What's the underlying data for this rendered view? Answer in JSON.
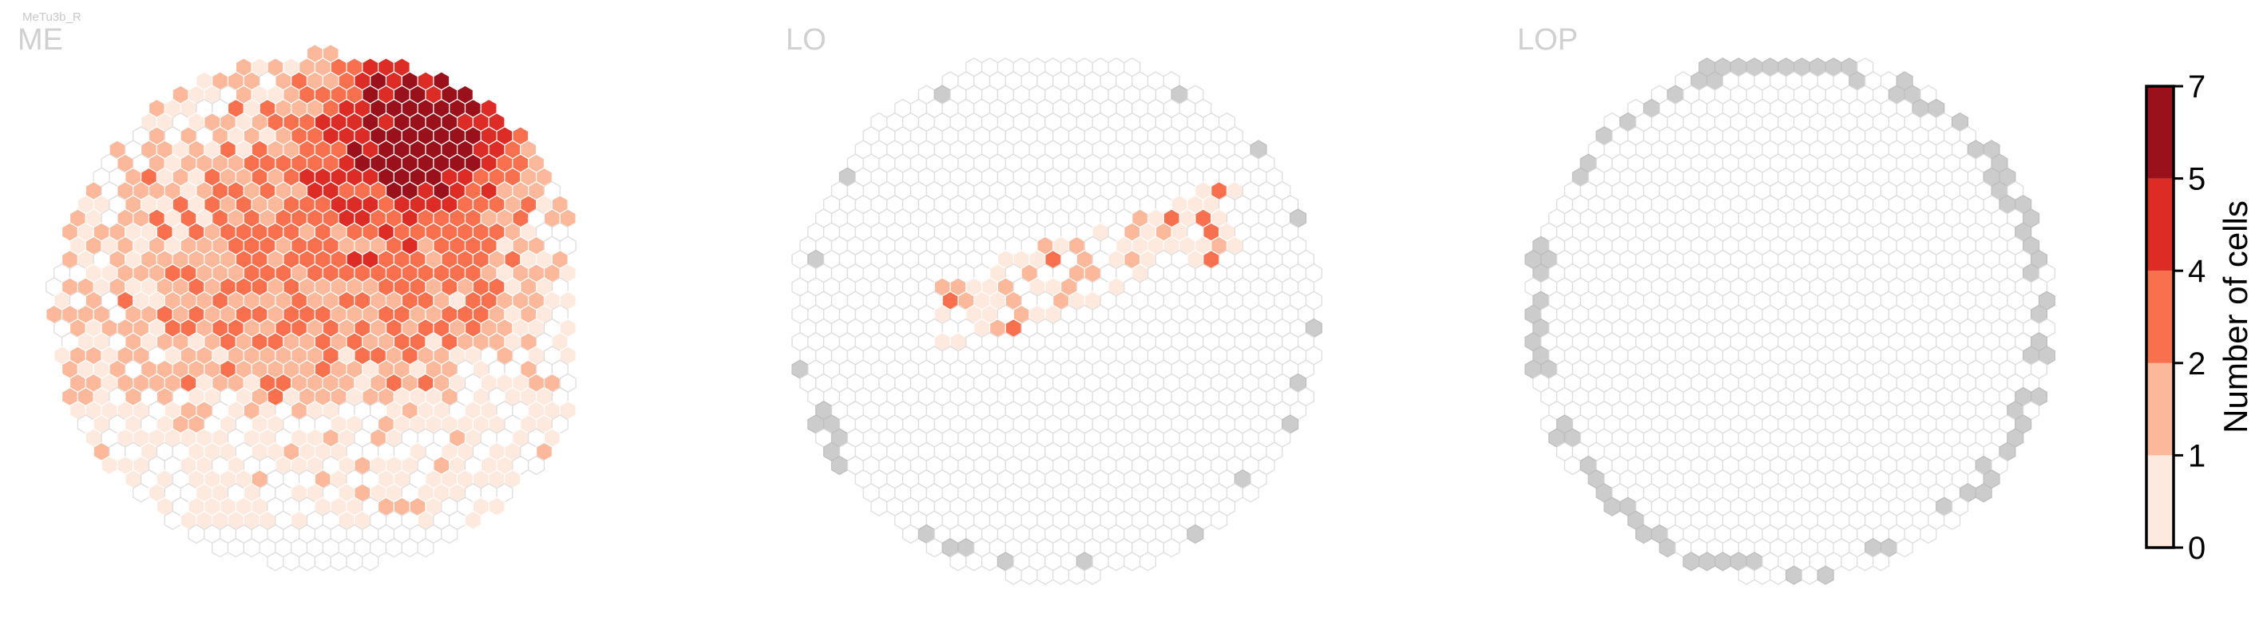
{
  "cell_type_label": "MeTu3b_R",
  "colorbar": {
    "label": "Number of cells",
    "ticks": [
      "0",
      "1",
      "2",
      "4",
      "5",
      "7"
    ],
    "colors": [
      "#fee9df",
      "#fcb89b",
      "#f9704f",
      "#dd2b25",
      "#9b111b"
    ],
    "edge_color": "#000000"
  },
  "colors": {
    "empty_fill": "#ffffff",
    "empty_stroke": "#dcdcdc",
    "edge_fill": "#cccccc",
    "title_text": "#c8c8c8"
  },
  "chart_data": [
    {
      "type": "heatmap",
      "title": "ME",
      "value_scale": "binned count of cells per column",
      "clim": [
        0,
        7
      ],
      "description_of_distribution": "Dense high counts in the dorsal-posterior (upper-right) region, values 4-7; moderate 1-4 across the upper half; sparse 0-1 in the lower half; empty at the bottom.",
      "peak_value": 7
    },
    {
      "type": "heatmap",
      "title": "LO",
      "value_scale": "binned count of cells per column",
      "clim": [
        0,
        7
      ],
      "description_of_distribution": "Mostly empty; a sparse horizontal band of 1-4 values across the middle; grey edge columns around the border.",
      "peak_value": 4
    },
    {
      "type": "heatmap",
      "title": "LOP",
      "value_scale": "binned count of cells per column",
      "clim": [
        0,
        7
      ],
      "description_of_distribution": "All columns empty; grey edge columns around the border.",
      "peak_value": 0
    }
  ]
}
